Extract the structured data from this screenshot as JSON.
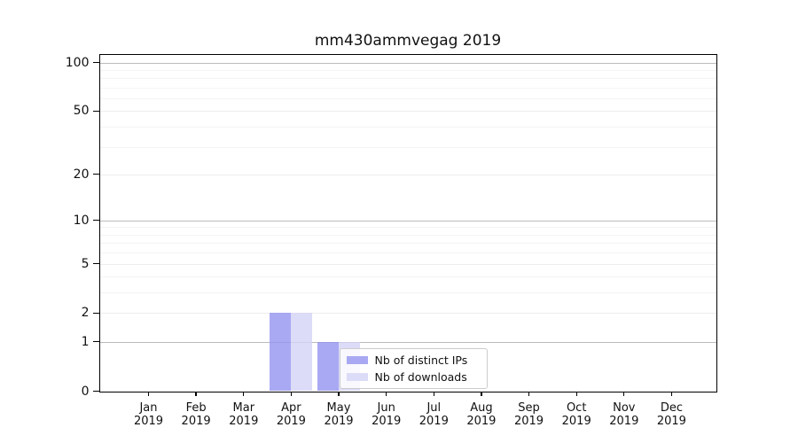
{
  "figure": {
    "title": "mm430ammvegag 2019"
  },
  "legend": {
    "items": [
      {
        "label": "Nb of distinct IPs",
        "color": "#a9a9f3"
      },
      {
        "label": "Nb of downloads",
        "color": "#dcdcf8"
      }
    ]
  },
  "chart_data": {
    "type": "bar",
    "title": "mm430ammvegag 2019",
    "categories": [
      "Jan 2019",
      "Feb 2019",
      "Mar 2019",
      "Apr 2019",
      "May 2019",
      "Jun 2019",
      "Jul 2019",
      "Aug 2019",
      "Sep 2019",
      "Oct 2019",
      "Nov 2019",
      "Dec 2019"
    ],
    "series": [
      {
        "name": "Nb of distinct IPs",
        "color": "#a9a9f3",
        "fill": "rgba(148,148,240,0.8)",
        "values": [
          0,
          0,
          0,
          2,
          1,
          0,
          0,
          0,
          0,
          0,
          0,
          0
        ]
      },
      {
        "name": "Nb of downloads",
        "color": "#dcdcf8",
        "fill": "rgba(211,211,246,0.8)",
        "values": [
          0,
          0,
          0,
          2,
          1,
          0,
          0,
          0,
          0,
          0,
          0,
          0
        ]
      }
    ],
    "xlabel": "",
    "ylabel": "",
    "yscale": "log1p",
    "ylim": [
      0,
      112
    ],
    "ytick_labels": [
      0,
      1,
      2,
      5,
      10,
      20,
      50,
      100
    ],
    "decade_gridlines": [
      1,
      10,
      100
    ],
    "minor_gridlines": [
      3,
      4,
      6,
      7,
      8,
      9,
      30,
      40,
      60,
      70,
      80,
      90
    ],
    "grid": "horizontal",
    "legend_position": "lower center, inside axes"
  }
}
